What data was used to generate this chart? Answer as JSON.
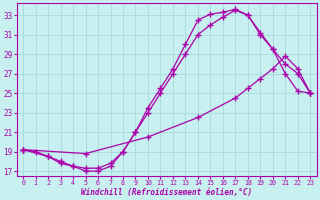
{
  "xlabel": "Windchill (Refroidissement éolien,°C)",
  "bg_color": "#c8f0f0",
  "line_color": "#aa00aa",
  "grid_color": "#aadddd",
  "xlim": [
    -0.5,
    23.5
  ],
  "ylim": [
    16.5,
    34.2
  ],
  "xticks": [
    0,
    1,
    2,
    3,
    4,
    5,
    6,
    7,
    8,
    9,
    10,
    11,
    12,
    13,
    14,
    15,
    16,
    17,
    18,
    19,
    20,
    21,
    22,
    23
  ],
  "yticks": [
    17,
    19,
    21,
    23,
    25,
    27,
    29,
    31,
    33
  ],
  "curve1_x": [
    0,
    1,
    2,
    3,
    4,
    5,
    6,
    7,
    8,
    9,
    10,
    11,
    12,
    13,
    14,
    15,
    16,
    17,
    18,
    19,
    20,
    21,
    22,
    23
  ],
  "curve1_y": [
    19.2,
    19.0,
    18.5,
    17.8,
    17.5,
    17.0,
    17.0,
    17.5,
    19.0,
    21.0,
    23.5,
    25.5,
    27.5,
    30.0,
    32.5,
    33.1,
    33.3,
    33.6,
    33.0,
    31.2,
    29.5,
    27.0,
    25.2,
    25.0
  ],
  "curve2_x": [
    0,
    2,
    3,
    4,
    5,
    6,
    7,
    8,
    9,
    10,
    11,
    12,
    13,
    14,
    15,
    16,
    17,
    18,
    19,
    20,
    21,
    22,
    23
  ],
  "curve2_y": [
    19.2,
    18.5,
    18.0,
    17.5,
    17.3,
    17.3,
    17.8,
    19.0,
    21.0,
    23.0,
    25.0,
    27.0,
    29.0,
    31.0,
    32.0,
    32.8,
    33.5,
    33.0,
    31.0,
    29.5,
    28.0,
    27.0,
    25.0
  ],
  "curve3_x": [
    0,
    5,
    10,
    14,
    17,
    18,
    19,
    20,
    21,
    22,
    23
  ],
  "curve3_y": [
    19.2,
    18.8,
    20.5,
    22.5,
    24.5,
    25.5,
    26.5,
    27.5,
    28.8,
    27.5,
    25.0
  ]
}
